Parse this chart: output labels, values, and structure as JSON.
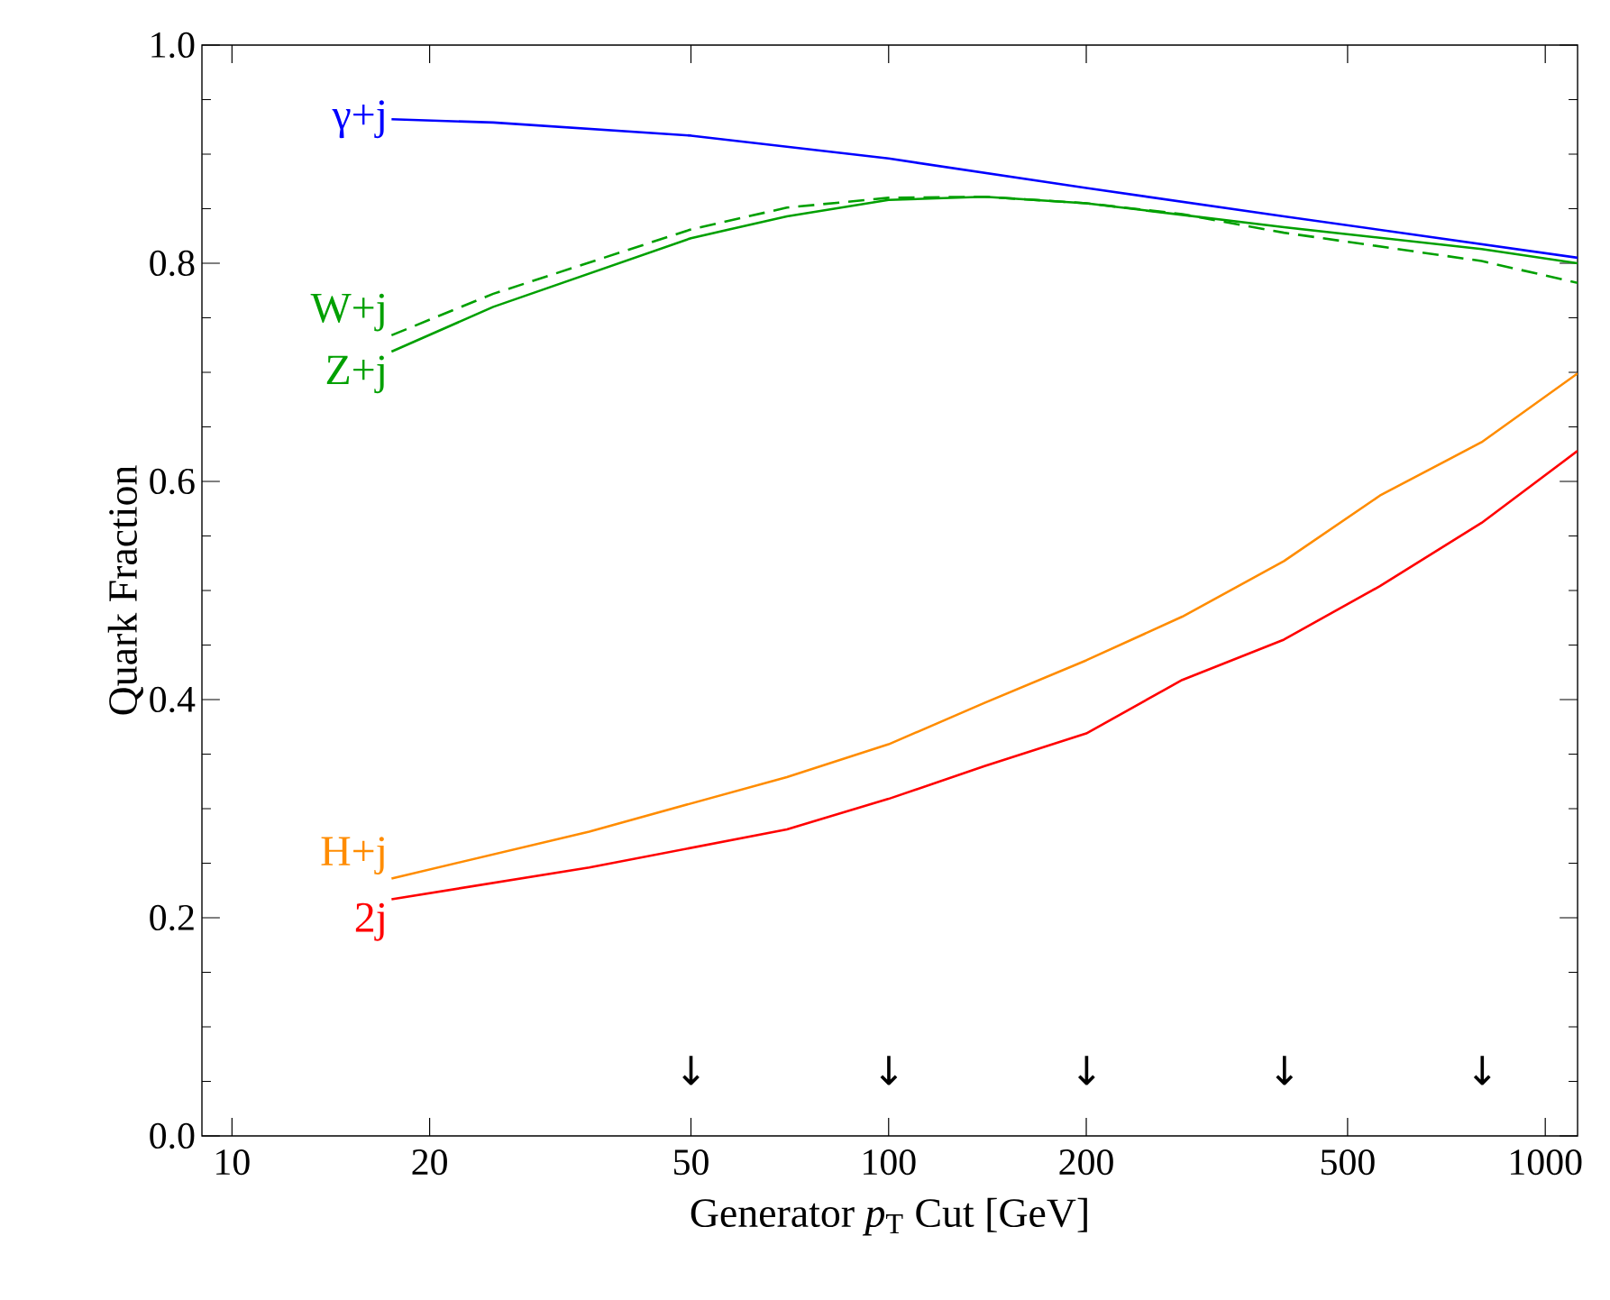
{
  "chart_data": {
    "type": "line",
    "xlabel": "Generator *p*$_{T}$ Cut [GeV]",
    "ylabel": "Quark Fraction",
    "log": "x",
    "xlim": [
      9,
      1120
    ],
    "ylim": [
      0,
      1
    ],
    "xticks": [
      10,
      20,
      50,
      100,
      200,
      500,
      1000
    ],
    "yticks": [
      {
        "value": 0,
        "label": "0.0"
      },
      {
        "value": 0.2,
        "label": "0.2"
      },
      {
        "value": 0.4,
        "label": "0.4"
      },
      {
        "value": 0.6,
        "label": "0.6"
      },
      {
        "value": 0.8,
        "label": "0.8"
      },
      {
        "value": 1,
        "label": "1.0"
      }
    ],
    "series": [
      {
        "name": "γ+j",
        "color": "#0000ff",
        "line_style": "solid",
        "x": [
          17.5,
          25,
          50,
          100,
          200,
          400,
          1120
        ],
        "values": [
          0.932,
          0.929,
          0.917,
          0.896,
          0.869,
          0.843,
          0.805
        ]
      },
      {
        "name": "W+j",
        "color": "#00a000",
        "line_style": "dashed",
        "x": [
          17.5,
          25,
          50,
          70,
          100,
          140,
          200,
          280,
          400,
          800,
          1120
        ],
        "values": [
          0.734,
          0.772,
          0.831,
          0.851,
          0.86,
          0.861,
          0.855,
          0.845,
          0.828,
          0.802,
          0.782
        ]
      },
      {
        "name": "Z+j",
        "color": "#00a000",
        "line_style": "solid",
        "x": [
          17.5,
          25,
          50,
          70,
          100,
          140,
          200,
          400,
          800,
          1120
        ],
        "values": [
          0.719,
          0.76,
          0.823,
          0.843,
          0.858,
          0.861,
          0.855,
          0.833,
          0.813,
          0.8
        ]
      },
      {
        "name": "H+j",
        "color": "#ff8c00",
        "line_style": "solid",
        "x": [
          17.5,
          35,
          70,
          100,
          140,
          200,
          280,
          400,
          560,
          800,
          1120
        ],
        "values": [
          0.236,
          0.279,
          0.329,
          0.359,
          0.397,
          0.436,
          0.476,
          0.527,
          0.587,
          0.636,
          0.699
        ]
      },
      {
        "name": "2j",
        "color": "#ff0000",
        "line_style": "solid",
        "x": [
          17.5,
          35,
          70,
          100,
          140,
          200,
          280,
          400,
          560,
          800,
          1120
        ],
        "values": [
          0.217,
          0.246,
          0.281,
          0.309,
          0.339,
          0.369,
          0.418,
          0.455,
          0.504,
          0.562,
          0.628
        ]
      }
    ],
    "annotations": [
      "↓",
      "↓",
      "↓",
      "↓",
      "↓"
    ]
  }
}
